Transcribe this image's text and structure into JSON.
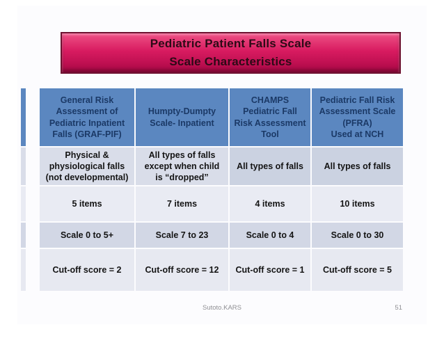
{
  "title": {
    "line1": "Pediatric Patient Falls Scale",
    "line2": "Scale Characteristics"
  },
  "table": {
    "headers": [
      "General Risk\nAssessment of\nPediatric Inpatient\nFalls (GRAF-PIF)",
      "Humpty-Dumpty\nScale- Inpatient",
      "CHAMPS\nPediatric Fall\nRisk Assessment\nTool",
      "Pediatric Fall Risk\nAssessment Scale\n(PFRA)\nUsed at NCH"
    ],
    "rows": [
      [
        "Physical &\nphysiological falls\n(not developmental)",
        "All types of falls\nexcept when child\nis “dropped”",
        "All types of falls",
        "All types of falls"
      ],
      [
        "5 items",
        "7 items",
        "4 items",
        "10 items"
      ],
      [
        "Scale 0 to 5+",
        "Scale 7 to 23",
        "Scale 0 to 4",
        "Scale 0 to 30"
      ],
      [
        "Cut-off score = 2",
        "Cut-off score = 12",
        "Cut-off score = 1",
        "Cut-off score = 5"
      ]
    ]
  },
  "footer": {
    "author": "Sutoto.KARS",
    "page_number": "51"
  },
  "colors": {
    "banner_pink": "#d81b60",
    "banner_border": "#6e1130",
    "title_text": "#2d0a16",
    "header_blue": "#5b87c0",
    "header_text": "#1b3966",
    "row_medium": "#d2d7e5",
    "row_light": "#e9ebf3",
    "gridline_white": "#ffffff",
    "footer_gray": "#8f8f93"
  }
}
